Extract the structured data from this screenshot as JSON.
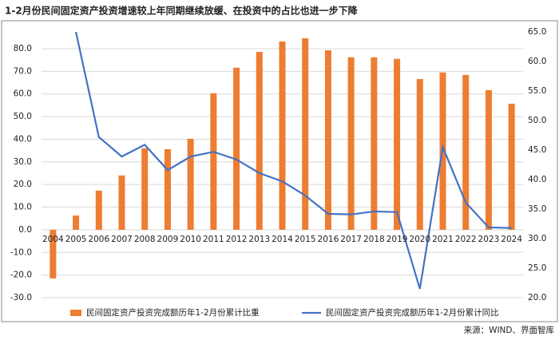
{
  "chart_data": {
    "type": "bar-line",
    "title": "1-2月份民间固定资产投资增速较上年同期继续放缓、在投资中的占比也进一步下降",
    "source": "来源：WIND、界面智库",
    "categories": [
      "2004",
      "2005",
      "2006",
      "2007",
      "2008",
      "2009",
      "2010",
      "2011",
      "2012",
      "2013",
      "2014",
      "2015",
      "2016",
      "2017",
      "2018",
      "2019",
      "2020",
      "2021",
      "2022",
      "2023",
      "2024"
    ],
    "series": [
      {
        "name": "民间固定资产投资完成额历年1-2月份累计比重",
        "type": "bar",
        "color": "#ed7d31",
        "values": [
          -21.5,
          6.3,
          17.3,
          24.0,
          36.0,
          35.6,
          40.2,
          60.3,
          71.6,
          78.6,
          83.2,
          84.6,
          79.3,
          76.2,
          76.2,
          75.5,
          66.6,
          69.5,
          68.4,
          61.7,
          55.7
        ]
      },
      {
        "name": "民间固定资产投资完成额历年1-2月份累计同比",
        "type": "line",
        "axis": "y2",
        "color": "#4472c4",
        "values": [
          null,
          65.0,
          47.2,
          43.9,
          45.9,
          41.6,
          43.9,
          44.7,
          43.4,
          41.1,
          39.7,
          37.3,
          34.2,
          34.1,
          34.6,
          34.5,
          21.5,
          45.5,
          36.1,
          31.9,
          31.8
        ]
      }
    ],
    "ylim": [
      -30,
      87.4
    ],
    "yticks": [
      {
        "value": -30,
        "label": "-30.0"
      },
      {
        "value": -20,
        "label": "-20.0"
      },
      {
        "value": -10,
        "label": "-10.0"
      },
      {
        "value": 0,
        "label": "0.0"
      },
      {
        "value": 10,
        "label": "10.0"
      },
      {
        "value": 20,
        "label": "20.0"
      },
      {
        "value": 30,
        "label": "30.0"
      },
      {
        "value": 40,
        "label": "40.0"
      },
      {
        "value": 50,
        "label": "50.0"
      },
      {
        "value": 60,
        "label": "60.0"
      },
      {
        "value": 70,
        "label": "70.0"
      },
      {
        "value": 80,
        "label": "80.0"
      }
    ],
    "y2lim": [
      20,
      65
    ],
    "y2ticks": [
      {
        "value": 20,
        "label": "20.0"
      },
      {
        "value": 25,
        "label": "25.0"
      },
      {
        "value": 30,
        "label": "30.0"
      },
      {
        "value": 35,
        "label": "35.0"
      },
      {
        "value": 40,
        "label": "40.0"
      },
      {
        "value": 45,
        "label": "45.0"
      },
      {
        "value": 50,
        "label": "50.0"
      },
      {
        "value": 55,
        "label": "55.0"
      },
      {
        "value": 60,
        "label": "60.0"
      },
      {
        "value": 65,
        "label": "65.0"
      }
    ],
    "grid": true
  }
}
